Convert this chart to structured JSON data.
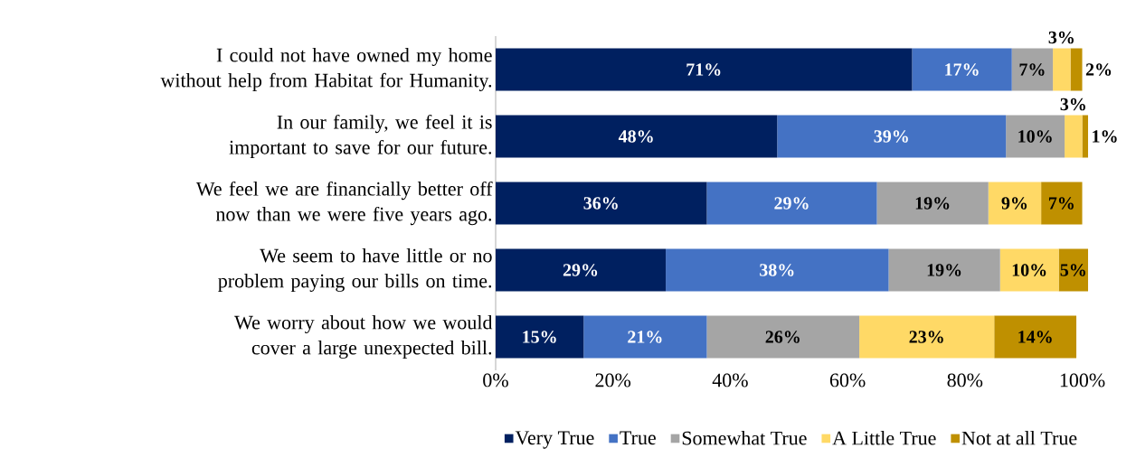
{
  "chart_data": {
    "type": "bar",
    "orientation": "horizontal",
    "stacked": true,
    "legend": "bottom",
    "grid": false,
    "categories": [
      "I could not have owned my home without help from Habitat for Humanity.",
      "In our family, we feel it is important to save for our future.",
      "We feel we are financially better off now than we were five years ago.",
      "We seem to have little or no problem paying our bills on time.",
      "We worry about how we would cover a large unexpected bill."
    ],
    "series": [
      {
        "name": "Very True",
        "color": "#002060",
        "values": [
          71,
          48,
          36,
          29,
          15
        ],
        "value_labels": [
          "71%",
          "48%",
          "36%",
          "29%",
          "15%"
        ]
      },
      {
        "name": "True",
        "color": "#4472c4",
        "values": [
          17,
          39,
          29,
          38,
          21
        ],
        "value_labels": [
          "17%",
          "39%",
          "29%",
          "38%",
          "21%"
        ]
      },
      {
        "name": "Somewhat True",
        "color": "#a5a5a5",
        "values": [
          7,
          10,
          19,
          19,
          26
        ],
        "value_labels": [
          "7%",
          "10%",
          "19%",
          "19%",
          "26%"
        ]
      },
      {
        "name": "A Little True",
        "color": "#ffd966",
        "values": [
          3,
          3,
          9,
          10,
          23
        ],
        "value_labels": [
          "3%",
          "3%",
          "9%",
          "10%",
          "23%"
        ]
      },
      {
        "name": "Not at all True",
        "color": "#bf9000",
        "values": [
          2,
          1,
          7,
          5,
          14
        ],
        "value_labels": [
          "2%",
          "1%",
          "7%",
          "5%",
          "14%"
        ]
      }
    ],
    "xlim": [
      0,
      101
    ],
    "xticks": [
      {
        "value": 0,
        "label": "0%"
      },
      {
        "value": 20,
        "label": "20%"
      },
      {
        "value": 40,
        "label": "40%"
      },
      {
        "value": 60,
        "label": "60%"
      },
      {
        "value": 80,
        "label": "80%"
      },
      {
        "value": 100,
        "label": "100%"
      }
    ]
  }
}
